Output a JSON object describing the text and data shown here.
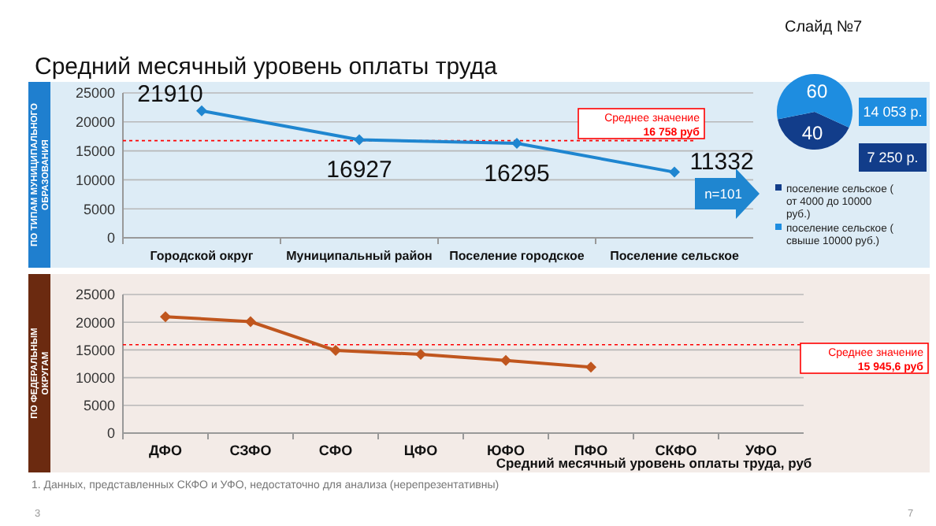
{
  "chart_data": [
    {
      "type": "line",
      "title": "Средний месячный уровень оплаты труда",
      "ylabel": "ПО ТИПАМ МУНИЦИПАЛЬНОГО\nОБРАЗОВАНИЯ",
      "categories": [
        "Городской округ",
        "Муниципальный район",
        "Поселение городское",
        "Поселение сельское"
      ],
      "series": [
        {
          "color": "#1f86d0",
          "values": [
            21910,
            16927,
            16295,
            11332
          ]
        }
      ],
      "ylim": [
        0,
        25000
      ],
      "yticks": [
        0,
        5000,
        10000,
        15000,
        20000,
        25000
      ],
      "grid": "y",
      "marker": "diamond",
      "data_labels": true,
      "ref_lines": [
        {
          "axis": "y",
          "value": 16758,
          "label": "Среднее значение\n16 758 руб",
          "color": "#ff0000",
          "line_style": "dotted"
        }
      ],
      "annotations": [
        "Слайд №7",
        "n=101"
      ]
    },
    {
      "type": "pie",
      "categories": [
        "поселение сельское ( от 4000 до 10000 руб.)",
        "поселение сельское ( свыше 10000 руб.)"
      ],
      "values": [
        40,
        60
      ],
      "colors": [
        "#123d8a",
        "#1e8de0"
      ],
      "data_labels": true,
      "legend": "bottom",
      "annotations": [
        "7 250 р.",
        "14 053 р."
      ]
    },
    {
      "type": "line",
      "ylabel": "ПО ФЕДЕРАЛЬНЫМ\nОКРУГАМ",
      "xlabel": "Средний месячный уровень оплаты труда, руб",
      "categories": [
        "ДФО",
        "СЗФО",
        "СФО",
        "ЦФО",
        "ЮФО",
        "ПФО",
        "СКФО",
        "УФО"
      ],
      "series": [
        {
          "color": "#c0561e",
          "values": [
            21000,
            20100,
            14900,
            14200,
            13100,
            11900,
            null,
            null
          ]
        }
      ],
      "ylim": [
        0,
        25000
      ],
      "yticks": [
        0,
        5000,
        10000,
        15000,
        20000,
        25000
      ],
      "grid": "y",
      "marker": "diamond",
      "ref_lines": [
        {
          "axis": "y",
          "value": 15945.6,
          "label": "Среднее значение\n15 945,6 руб",
          "color": "#ff0000",
          "line_style": "dotted"
        }
      ],
      "annotations": [
        "1. Данных, представленных  СКФО и УФО, недостаточно  для анализа (нерепрезентативны)",
        "3",
        "7"
      ]
    }
  ]
}
